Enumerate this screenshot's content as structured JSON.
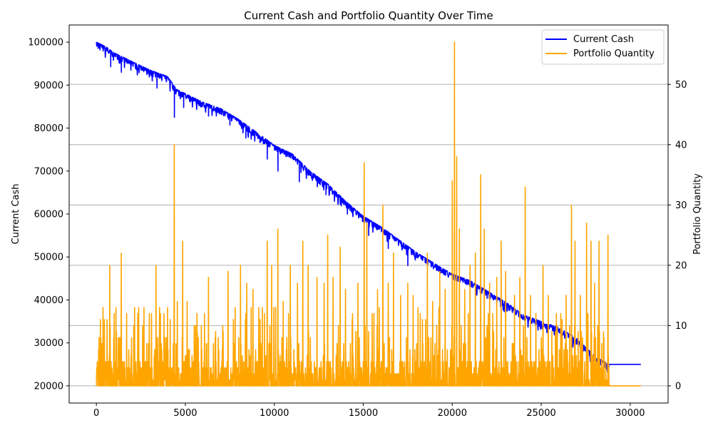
{
  "chart_data": {
    "type": "line",
    "title": "Current Cash and Portfolio Quantity Over Time",
    "xlabel": "",
    "ylabel_left": "Current Cash",
    "ylabel_right": "Portfolio Quantity",
    "xlim": [
      -1530,
      32130
    ],
    "ylim_left": [
      16000,
      104000
    ],
    "ylim_right": [
      -2.85,
      59.85
    ],
    "x_ticks": [
      0,
      5000,
      10000,
      15000,
      20000,
      25000,
      30000
    ],
    "y_left_ticks": [
      20000,
      30000,
      40000,
      50000,
      60000,
      70000,
      80000,
      90000,
      100000
    ],
    "y_right_ticks": [
      0,
      10,
      20,
      30,
      40,
      50
    ],
    "grid": "horizontal lines at right-axis ticks",
    "legend_position": "top-right",
    "legend": [
      "Current Cash",
      "Portfolio Quantity"
    ],
    "colors": {
      "cash": "#0000ff",
      "quantity": "#ffa500"
    },
    "series": [
      {
        "name": "Current Cash",
        "axis": "left",
        "color": "#0000ff",
        "x": [
          0,
          500,
          1000,
          1500,
          2000,
          3000,
          4000,
          4500,
          5000,
          6000,
          7000,
          8000,
          9000,
          10000,
          11000,
          12000,
          13000,
          14000,
          15000,
          16000,
          17000,
          18000,
          19000,
          20000,
          21000,
          22000,
          23000,
          24000,
          25000,
          26000,
          27000,
          28000,
          28800,
          30600
        ],
        "values": [
          100000,
          99000,
          97500,
          96500,
          95500,
          93500,
          92000,
          89000,
          88000,
          86000,
          84500,
          82000,
          79000,
          76000,
          74000,
          70000,
          67000,
          63000,
          59500,
          57000,
          54000,
          51000,
          48500,
          46000,
          44500,
          42000,
          39500,
          36500,
          35000,
          33500,
          31000,
          27000,
          25000,
          25000
        ],
        "dips": [
          [
            200,
            98200
          ],
          [
            800,
            94300
          ],
          [
            1400,
            93000
          ],
          [
            3400,
            89300
          ],
          [
            4380,
            82500
          ],
          [
            4900,
            84800
          ],
          [
            6300,
            82800
          ],
          [
            7500,
            80700
          ],
          [
            8400,
            77700
          ],
          [
            9600,
            72800
          ],
          [
            10200,
            70000
          ],
          [
            11400,
            67500
          ],
          [
            12900,
            64500
          ],
          [
            13700,
            62300
          ],
          [
            14100,
            60000
          ],
          [
            15300,
            55000
          ],
          [
            16400,
            52000
          ],
          [
            17500,
            48000
          ]
        ]
      },
      {
        "name": "Portfolio Quantity",
        "axis": "right",
        "color": "#ffa500",
        "x_end": 28800,
        "tail_end": 30600,
        "peaks": [
          [
            150,
            8
          ],
          [
            300,
            7
          ],
          [
            600,
            11
          ],
          [
            750,
            20
          ],
          [
            1000,
            12
          ],
          [
            1400,
            22
          ],
          [
            1700,
            12
          ],
          [
            2100,
            10
          ],
          [
            2600,
            10
          ],
          [
            3100,
            12
          ],
          [
            3350,
            20
          ],
          [
            3600,
            12
          ],
          [
            4000,
            13
          ],
          [
            4380,
            40
          ],
          [
            4550,
            14
          ],
          [
            4850,
            24
          ],
          [
            5100,
            14
          ],
          [
            5500,
            10
          ],
          [
            5900,
            10
          ],
          [
            6300,
            18
          ],
          [
            6700,
            9
          ],
          [
            7100,
            10
          ],
          [
            7400,
            19
          ],
          [
            7800,
            13
          ],
          [
            8100,
            20
          ],
          [
            8450,
            17
          ],
          [
            8800,
            16
          ],
          [
            9200,
            11
          ],
          [
            9600,
            24
          ],
          [
            9850,
            20
          ],
          [
            10200,
            26
          ],
          [
            10500,
            14
          ],
          [
            10900,
            20
          ],
          [
            11300,
            17
          ],
          [
            11600,
            24
          ],
          [
            11900,
            20
          ],
          [
            12400,
            18
          ],
          [
            12800,
            17
          ],
          [
            13000,
            25
          ],
          [
            13300,
            18
          ],
          [
            13700,
            23
          ],
          [
            14000,
            16
          ],
          [
            14400,
            12
          ],
          [
            14700,
            17
          ],
          [
            15050,
            37
          ],
          [
            15200,
            27
          ],
          [
            15500,
            12
          ],
          [
            15800,
            16
          ],
          [
            16100,
            30
          ],
          [
            16400,
            17
          ],
          [
            16700,
            22
          ],
          [
            17100,
            15
          ],
          [
            17500,
            17
          ],
          [
            17800,
            15
          ],
          [
            18200,
            12
          ],
          [
            18600,
            22
          ],
          [
            18900,
            14
          ],
          [
            19300,
            19
          ],
          [
            19600,
            16
          ],
          [
            20000,
            34
          ],
          [
            20120,
            57
          ],
          [
            20250,
            38
          ],
          [
            20400,
            26
          ],
          [
            20700,
            16
          ],
          [
            21000,
            20
          ],
          [
            21300,
            22
          ],
          [
            21600,
            35
          ],
          [
            21800,
            26
          ],
          [
            22100,
            17
          ],
          [
            22500,
            18
          ],
          [
            22750,
            24
          ],
          [
            23000,
            19
          ],
          [
            23500,
            15
          ],
          [
            23800,
            18
          ],
          [
            24100,
            33
          ],
          [
            24400,
            15
          ],
          [
            24700,
            12
          ],
          [
            25100,
            20
          ],
          [
            25400,
            15
          ],
          [
            25800,
            9
          ],
          [
            26100,
            12
          ],
          [
            26400,
            15
          ],
          [
            26700,
            30
          ],
          [
            26900,
            24
          ],
          [
            27200,
            15
          ],
          [
            27550,
            27
          ],
          [
            27800,
            24
          ],
          [
            28000,
            17
          ],
          [
            28250,
            24
          ],
          [
            28500,
            9
          ],
          [
            28750,
            25
          ]
        ]
      }
    ]
  }
}
